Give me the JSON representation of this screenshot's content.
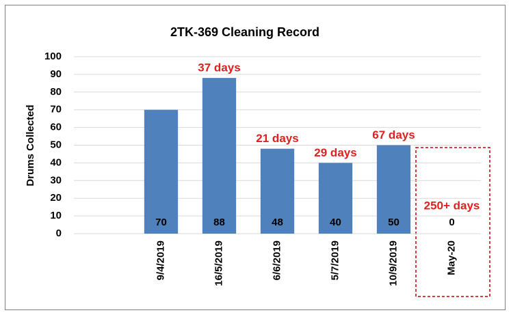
{
  "chart_data": {
    "type": "bar",
    "title": "2TK-369 Cleaning Record",
    "y_label": "Drums Collected",
    "categories": [
      null,
      "9/4/2019",
      "16/5/2019",
      "6/6/2019",
      "5/7/2019",
      "10/9/2019",
      "May-20"
    ],
    "values": [
      null,
      70,
      88,
      48,
      40,
      50,
      0
    ],
    "annotations": [
      null,
      null,
      "37 days",
      "21 days",
      "29 days",
      "67 days",
      "250+ days"
    ],
    "color": "#4f81bd",
    "annotation_color": "#e02020",
    "ylim": [
      0,
      100
    ],
    "yticks": [
      0,
      10,
      20,
      30,
      40,
      50,
      60,
      70,
      80,
      90,
      100
    ],
    "grid": true
  }
}
